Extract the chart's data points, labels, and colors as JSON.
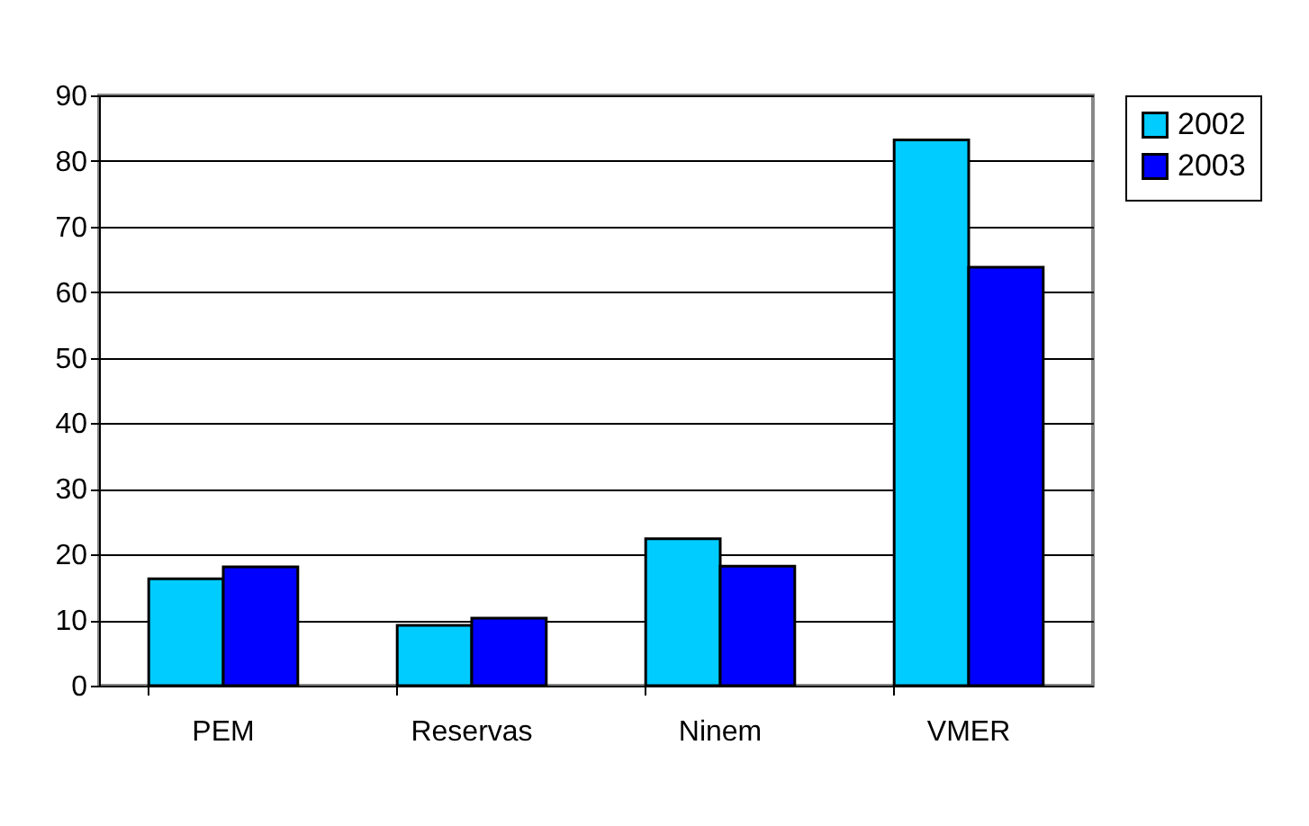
{
  "chart_data": {
    "type": "bar",
    "categories": [
      "PEM",
      "Reservas",
      "Ninem",
      "VMER"
    ],
    "series": [
      {
        "name": "2002",
        "color": "#00ccff",
        "values": [
          16.3,
          9.2,
          22.4,
          83.2
        ]
      },
      {
        "name": "2003",
        "color": "#0000ff",
        "values": [
          18.1,
          10.3,
          18.2,
          63.8
        ]
      }
    ],
    "ylim": [
      0,
      90
    ],
    "yticks": [
      0,
      10,
      20,
      30,
      40,
      50,
      60,
      70,
      80,
      90
    ],
    "grid": "y",
    "legend": "right"
  }
}
